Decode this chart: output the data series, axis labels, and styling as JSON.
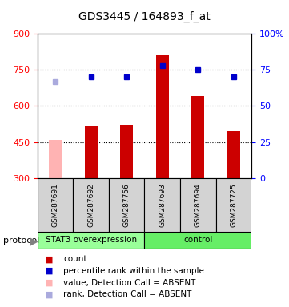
{
  "title": "GDS3445 / 164893_f_at",
  "samples": [
    "GSM287691",
    "GSM287692",
    "GSM287756",
    "GSM287693",
    "GSM287694",
    "GSM287725"
  ],
  "bar_values": [
    460,
    520,
    522,
    810,
    640,
    495
  ],
  "bar_colors": [
    "#ffb3b3",
    "#cc0000",
    "#cc0000",
    "#cc0000",
    "#cc0000",
    "#cc0000"
  ],
  "rank_values": [
    67,
    70,
    70,
    78,
    75,
    70
  ],
  "rank_colors": [
    "#aaaadd",
    "#0000cc",
    "#0000cc",
    "#0000cc",
    "#0000cc",
    "#0000cc"
  ],
  "ylim_left": [
    300,
    900
  ],
  "ylim_right": [
    0,
    100
  ],
  "yticks_left": [
    300,
    450,
    600,
    750,
    900
  ],
  "yticks_right": [
    0,
    25,
    50,
    75,
    100
  ],
  "yticklabels_right": [
    "0",
    "25",
    "50",
    "75",
    "100%"
  ],
  "hlines": [
    450,
    600,
    750
  ],
  "bar_bottom": 300,
  "protocol_groups": [
    {
      "label": "STAT3 overexpression",
      "samples": [
        0,
        1,
        2
      ],
      "color": "#99ff99"
    },
    {
      "label": "control",
      "samples": [
        3,
        4,
        5
      ],
      "color": "#66ee66"
    }
  ],
  "legend_items": [
    {
      "color": "#cc0000",
      "label": "count"
    },
    {
      "color": "#0000cc",
      "label": "percentile rank within the sample"
    },
    {
      "color": "#ffb3b3",
      "label": "value, Detection Call = ABSENT"
    },
    {
      "color": "#aaaadd",
      "label": "rank, Detection Call = ABSENT"
    }
  ],
  "bg_color": "#d3d3d3",
  "plot_bg": "#ffffff"
}
